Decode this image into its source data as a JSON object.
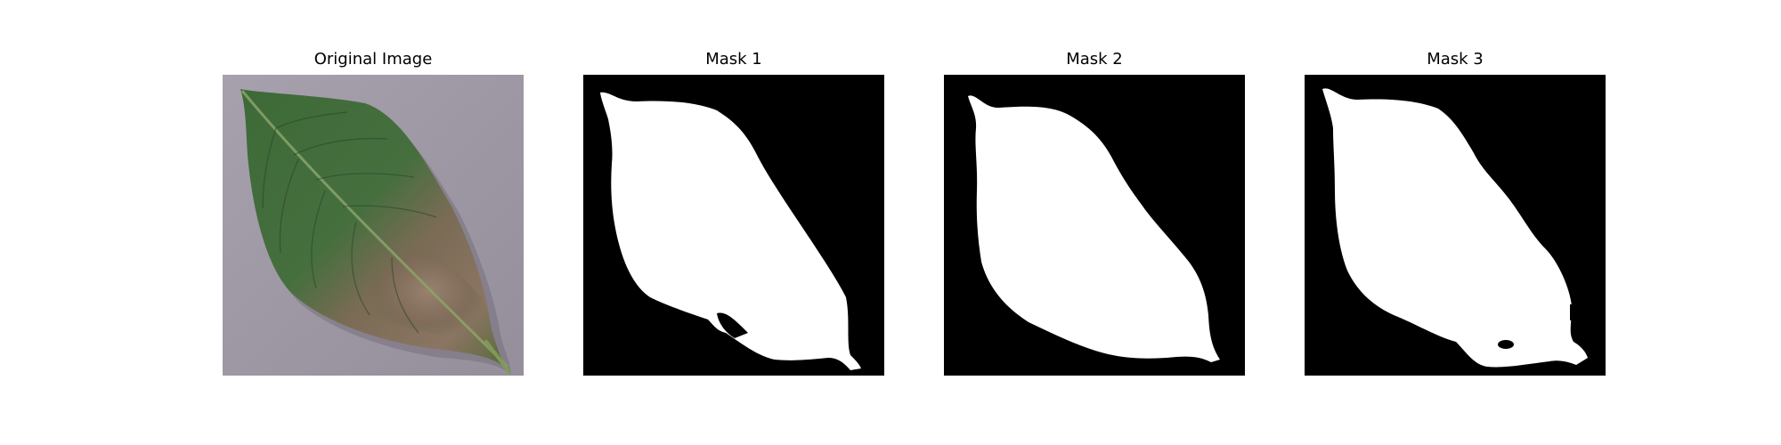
{
  "figure": {
    "panels": [
      {
        "title": "Original Image",
        "kind": "photo",
        "subject": "leaf"
      },
      {
        "title": "Mask 1",
        "kind": "mask"
      },
      {
        "title": "Mask 2",
        "kind": "mask"
      },
      {
        "title": "Mask 3",
        "kind": "mask"
      }
    ]
  },
  "colors": {
    "background": "#ffffff",
    "mask_background": "#000000",
    "mask_foreground": "#ffffff",
    "surface": "#a09aa6",
    "leaf_green": "#3f6b3a",
    "leaf_dark": "#2d4f2b",
    "lesion_brown": "#8a7461"
  }
}
